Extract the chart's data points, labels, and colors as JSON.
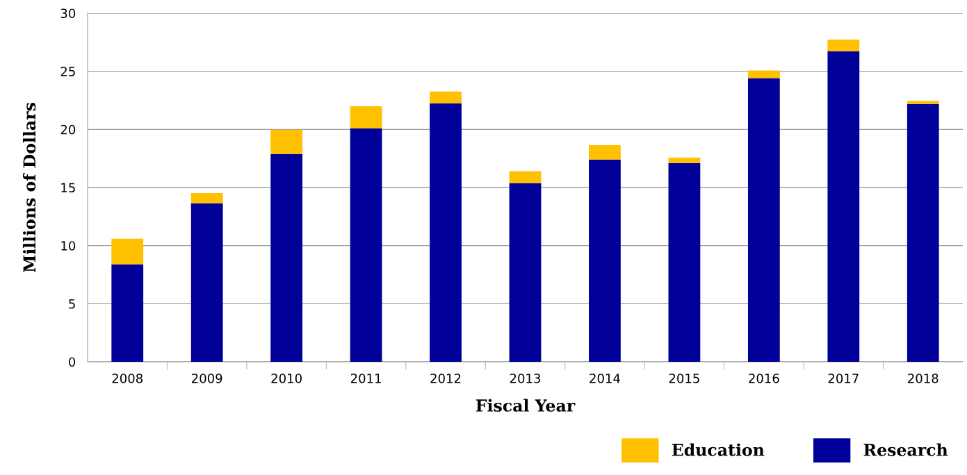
{
  "chart_data": {
    "type": "bar",
    "stacked": true,
    "xlabel": "Fiscal Year",
    "ylabel": "Millions of Dollars",
    "categories": [
      "2008",
      "2009",
      "2010",
      "2011",
      "2012",
      "2013",
      "2014",
      "2015",
      "2016",
      "2017",
      "2018"
    ],
    "series": [
      {
        "name": "Research",
        "color": "#000099",
        "values": [
          8.4,
          13.64,
          17.89,
          20.09,
          22.24,
          15.38,
          17.4,
          17.11,
          24.41,
          26.73,
          22.19
        ]
      },
      {
        "name": "Education",
        "color": "#ffc000",
        "values": [
          2.19,
          0.88,
          2.08,
          1.9,
          1.02,
          1.02,
          1.25,
          0.46,
          0.66,
          1.0,
          0.27
        ]
      }
    ],
    "ylim": [
      0,
      30
    ],
    "yticks": [
      0,
      5,
      10,
      15,
      20,
      25,
      30
    ],
    "grid": "y",
    "legend": "bottom right"
  }
}
